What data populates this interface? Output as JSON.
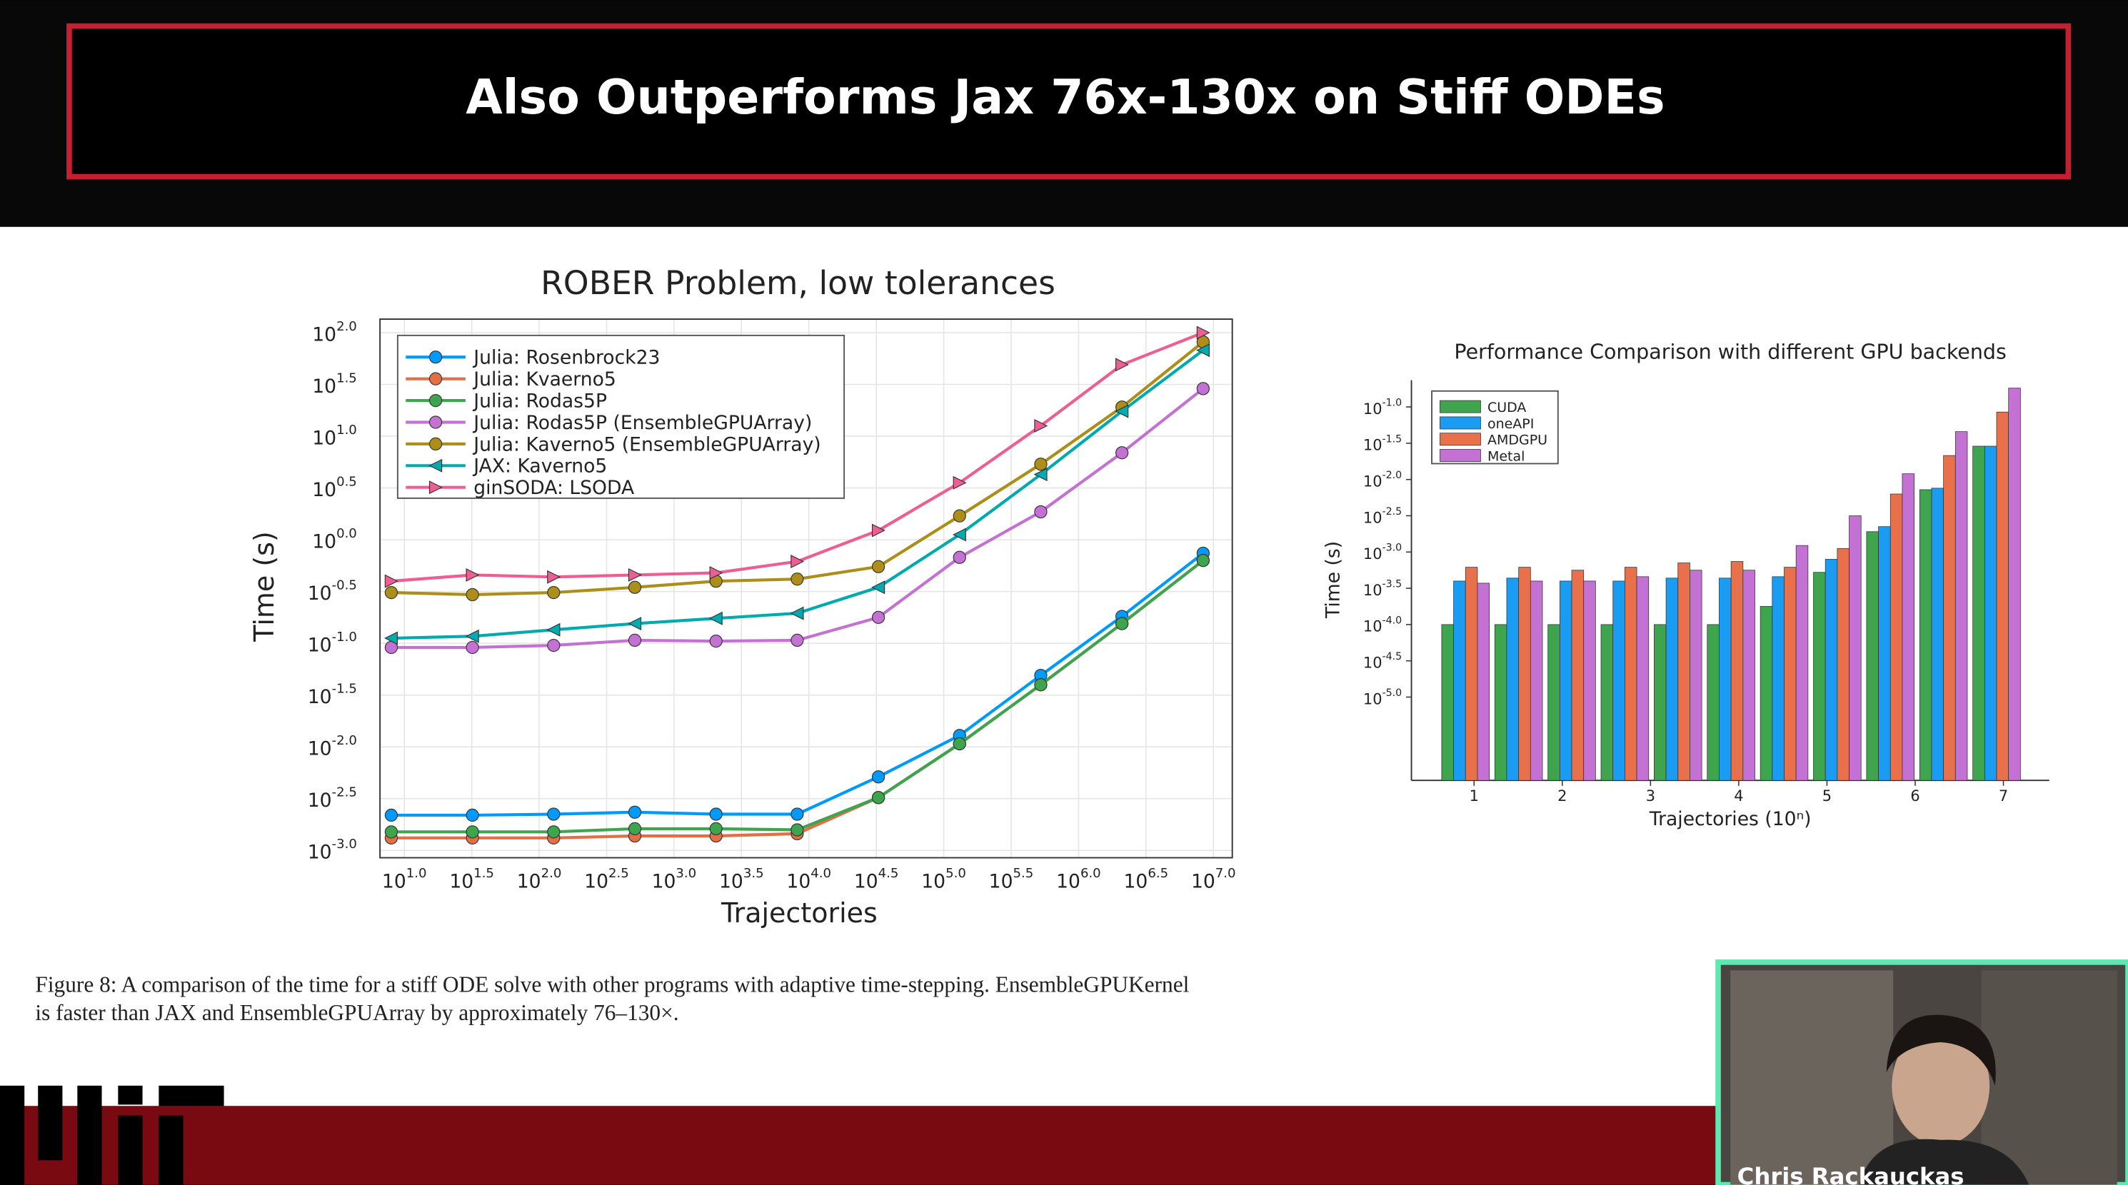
{
  "slide": {
    "title": "Also Outperforms Jax 76x-130x on Stiff ODEs",
    "caption": [
      "Figure 8: A comparison of the time for a stiff ODE solve with other programs with adaptive time-stepping. EnsembleGPUKernel",
      "is faster than JAX and EnsembleGPUArray by approximately 76–130×."
    ],
    "speaker": "Chris Rackauckas"
  },
  "chart_data": [
    {
      "type": "line",
      "title": "ROBER Problem, low tolerances",
      "x_label": "Trajectories",
      "y_label": "Time (s)",
      "xscale": "log",
      "yscale": "log",
      "grid": true,
      "legend": "top left",
      "xlim": [
        6.6,
        13800000
      ],
      "ylim": [
        0.00085,
        135
      ],
      "xticks": [
        {
          "value": 10,
          "label": "10^1.0"
        },
        {
          "value": 31.62,
          "label": "10^1.5"
        },
        {
          "value": 100,
          "label": "10^2.0"
        },
        {
          "value": 316.2,
          "label": "10^2.5"
        },
        {
          "value": 1000,
          "label": "10^3.0"
        },
        {
          "value": 3162,
          "label": "10^3.5"
        },
        {
          "value": 10000,
          "label": "10^4.0"
        },
        {
          "value": 31620,
          "label": "10^4.5"
        },
        {
          "value": 100000,
          "label": "10^5.0"
        },
        {
          "value": 316200,
          "label": "10^5.5"
        },
        {
          "value": 1000000,
          "label": "10^6.0"
        },
        {
          "value": 3162000,
          "label": "10^6.5"
        },
        {
          "value": 10000000,
          "label": "10^7.0"
        }
      ],
      "yticks": [
        {
          "value": 0.001,
          "label": "10^-3.0"
        },
        {
          "value": 0.003162,
          "label": "10^-2.5"
        },
        {
          "value": 0.01,
          "label": "10^-2.0"
        },
        {
          "value": 0.03162,
          "label": "10^-1.5"
        },
        {
          "value": 0.1,
          "label": "10^-1.0"
        },
        {
          "value": 0.3162,
          "label": "10^-0.5"
        },
        {
          "value": 1,
          "label": "10^0.0"
        },
        {
          "value": 3.162,
          "label": "10^0.5"
        },
        {
          "value": 10,
          "label": "10^1.0"
        },
        {
          "value": 31.62,
          "label": "10^1.5"
        },
        {
          "value": 100,
          "label": "10^2.0"
        }
      ],
      "x": [
        8,
        32,
        128,
        512,
        2048,
        8192,
        32768,
        131072,
        524288,
        2097152,
        8388608
      ],
      "series": [
        {
          "name": "Julia: Rosenbrock23",
          "color": "#009afa",
          "marker": "circle",
          "values": [
            0.00219,
            0.00219,
            0.00224,
            0.00234,
            0.00224,
            0.00224,
            0.00513,
            0.0129,
            0.049,
            0.182,
            0.741
          ]
        },
        {
          "name": "Julia: Kvaerno5",
          "color": "#e36f47",
          "marker": "circle",
          "values": [
            0.00132,
            0.00132,
            0.00132,
            0.00138,
            0.00138,
            0.00145,
            0.00324,
            0.0107,
            0.0398,
            0.155,
            0.631
          ]
        },
        {
          "name": "Julia: Rodas5P",
          "color": "#3ea44e",
          "marker": "circle",
          "values": [
            0.00151,
            0.00151,
            0.00151,
            0.00162,
            0.00162,
            0.00158,
            0.00324,
            0.0107,
            0.0398,
            0.155,
            0.631
          ]
        },
        {
          "name": "Julia: Rodas5P (EnsembleGPUArray)",
          "color": "#c371d2",
          "marker": "circle",
          "values": [
            0.0912,
            0.0912,
            0.0955,
            0.107,
            0.105,
            0.107,
            0.178,
            0.676,
            1.86,
            6.92,
            28.8
          ]
        },
        {
          "name": "Julia: Kaverno5 (EnsembleGPUArray)",
          "color": "#ac8e18",
          "marker": "circle",
          "values": [
            0.309,
            0.295,
            0.309,
            0.347,
            0.398,
            0.417,
            0.55,
            1.7,
            5.37,
            19.1,
            81.3
          ]
        },
        {
          "name": "JAX: Kaverno5",
          "color": "#00aaae",
          "marker": "triangle-left",
          "values": [
            0.112,
            0.117,
            0.135,
            0.155,
            0.174,
            0.195,
            0.347,
            1.12,
            4.27,
            17.4,
            67.6
          ]
        },
        {
          "name": "ginSODA: LSODA",
          "color": "#ed5e93",
          "marker": "triangle-right",
          "values": [
            0.398,
            0.457,
            0.437,
            0.457,
            0.479,
            0.617,
            1.23,
            3.55,
            12.6,
            49.0,
            100
          ]
        }
      ]
    },
    {
      "type": "bar",
      "title": "Performance Comparison with different GPU backends",
      "x_label": "Trajectories (10ⁿ)",
      "y_label": "Time (s)",
      "yscale": "log",
      "grid": false,
      "legend": "top left",
      "xlim": [
        0.29,
        7.52
      ],
      "ylim": [
        7.1e-07,
        0.234
      ],
      "xticks": [
        1,
        2,
        3,
        4,
        5,
        6,
        7
      ],
      "yticks": [
        {
          "value": 0.1,
          "label": "10^-1.0"
        },
        {
          "value": 0.03162,
          "label": "10^-1.5"
        },
        {
          "value": 0.01,
          "label": "10^-2.0"
        },
        {
          "value": 0.003162,
          "label": "10^-2.5"
        },
        {
          "value": 0.001,
          "label": "10^-3.0"
        },
        {
          "value": 0.0003162,
          "label": "10^-3.5"
        },
        {
          "value": 0.0001,
          "label": "10^-4.0"
        },
        {
          "value": 3.162e-05,
          "label": "10^-4.5"
        },
        {
          "value": 1e-05,
          "label": "10^-5.0"
        }
      ],
      "x": [
        0.903,
        1.505,
        2.107,
        2.709,
        3.311,
        3.913,
        4.515,
        5.117,
        5.719,
        6.321,
        6.923
      ],
      "series": [
        {
          "name": "CUDA",
          "color": "#3ea44e",
          "values": [
            0.0001,
            0.0001,
            0.0001,
            0.0001,
            0.0001,
            0.0001,
            0.000178,
            0.000525,
            0.00191,
            0.00724,
            0.0288
          ]
        },
        {
          "name": "oneAPI",
          "color": "#1a9cf2",
          "values": [
            0.000398,
            0.000437,
            0.000398,
            0.000398,
            0.000437,
            0.000437,
            0.000457,
            0.000794,
            0.00224,
            0.00759,
            0.0288
          ]
        },
        {
          "name": "AMDGPU",
          "color": "#e8704a",
          "values": [
            0.000617,
            0.000617,
            0.000562,
            0.000617,
            0.000708,
            0.000741,
            0.000617,
            0.00112,
            0.00631,
            0.0214,
            0.0851
          ]
        },
        {
          "name": "Metal",
          "color": "#c371d2",
          "values": [
            0.000372,
            0.000398,
            0.000398,
            0.000457,
            0.000562,
            0.000562,
            0.00123,
            0.00316,
            0.012,
            0.0457,
            0.182
          ]
        }
      ]
    }
  ]
}
